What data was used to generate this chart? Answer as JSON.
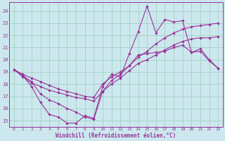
{
  "bg_color": "#cce8ee",
  "line_color": "#993399",
  "grid_color": "#99ccbb",
  "xlabel": "Windchill (Refroidissement éolien,°C)",
  "xlim": [
    -0.5,
    23.5
  ],
  "ylim": [
    14.5,
    24.7
  ],
  "xticks": [
    0,
    1,
    2,
    3,
    4,
    5,
    6,
    7,
    8,
    9,
    10,
    11,
    12,
    13,
    14,
    15,
    16,
    17,
    18,
    19,
    20,
    21,
    22,
    23
  ],
  "yticks": [
    15,
    16,
    17,
    18,
    19,
    20,
    21,
    22,
    23,
    24
  ],
  "line1_x": [
    0,
    1,
    2,
    3,
    4,
    5,
    6,
    7,
    8,
    9,
    10,
    11,
    12,
    13,
    14,
    15,
    16,
    17,
    18,
    19,
    20,
    21,
    22,
    23
  ],
  "line1_y": [
    19.2,
    18.7,
    17.8,
    16.5,
    15.5,
    15.3,
    14.8,
    14.8,
    15.4,
    15.2,
    17.8,
    18.8,
    18.6,
    20.5,
    22.3,
    24.4,
    22.2,
    23.3,
    23.1,
    23.2,
    20.6,
    20.9,
    20.0,
    19.3
  ],
  "line2_x": [
    0,
    1,
    2,
    3,
    4,
    5,
    6,
    7,
    8,
    9,
    10,
    11,
    12,
    13,
    14,
    15,
    16,
    17,
    18,
    19,
    20,
    21,
    22,
    23
  ],
  "line2_y": [
    19.2,
    18.8,
    18.5,
    18.2,
    17.9,
    17.6,
    17.4,
    17.2,
    17.0,
    16.9,
    18.0,
    18.6,
    19.0,
    19.5,
    20.2,
    20.7,
    21.3,
    21.8,
    22.2,
    22.5,
    22.7,
    22.8,
    22.9,
    23.0
  ],
  "line3_x": [
    0,
    1,
    2,
    3,
    4,
    5,
    6,
    7,
    8,
    9,
    10,
    11,
    12,
    13,
    14,
    15,
    16,
    17,
    18,
    19,
    20,
    21,
    22,
    23
  ],
  "line3_y": [
    19.2,
    18.6,
    18.1,
    17.8,
    17.5,
    17.3,
    17.1,
    16.9,
    16.8,
    16.6,
    17.4,
    18.0,
    18.5,
    19.1,
    19.7,
    20.0,
    20.4,
    20.8,
    21.2,
    21.5,
    21.7,
    21.8,
    21.8,
    21.9
  ],
  "line4_x": [
    1,
    2,
    3,
    4,
    5,
    6,
    7,
    8,
    9,
    10,
    11,
    12,
    13,
    14,
    15,
    16,
    17,
    18,
    19,
    20,
    21,
    22,
    23
  ],
  "line4_y": [
    18.7,
    18.2,
    17.2,
    16.7,
    16.4,
    16.0,
    15.7,
    15.3,
    15.1,
    17.4,
    18.3,
    18.8,
    19.5,
    20.4,
    20.5,
    20.6,
    20.7,
    21.0,
    21.2,
    20.6,
    20.7,
    19.9,
    19.3
  ]
}
